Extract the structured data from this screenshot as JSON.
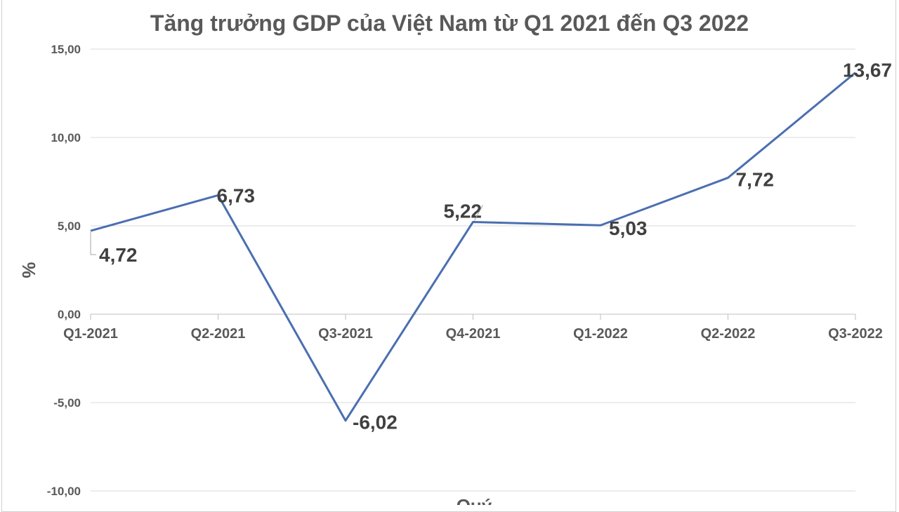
{
  "chart_data": {
    "type": "line",
    "title": "Tăng trưởng GDP của Việt Nam từ Q1 2021 đến Q3 2022",
    "xlabel": "Quý",
    "ylabel": "%",
    "categories": [
      "Q1-2021",
      "Q2-2021",
      "Q3-2021",
      "Q4-2021",
      "Q1-2022",
      "Q2-2022",
      "Q3-2022"
    ],
    "values": [
      4.72,
      6.73,
      -6.02,
      5.22,
      5.03,
      7.72,
      13.67
    ],
    "data_labels": [
      "4,72",
      "6,73",
      "-6,02",
      "5,22",
      "5,03",
      "7,72",
      "13,67"
    ],
    "ylim": [
      -10,
      15
    ],
    "yticks": [
      "-10,00",
      "-5,00",
      "0,00",
      "5,00",
      "10,00",
      "15,00"
    ],
    "grid": true,
    "series_color": "#4a6fb0",
    "legend": "none"
  }
}
